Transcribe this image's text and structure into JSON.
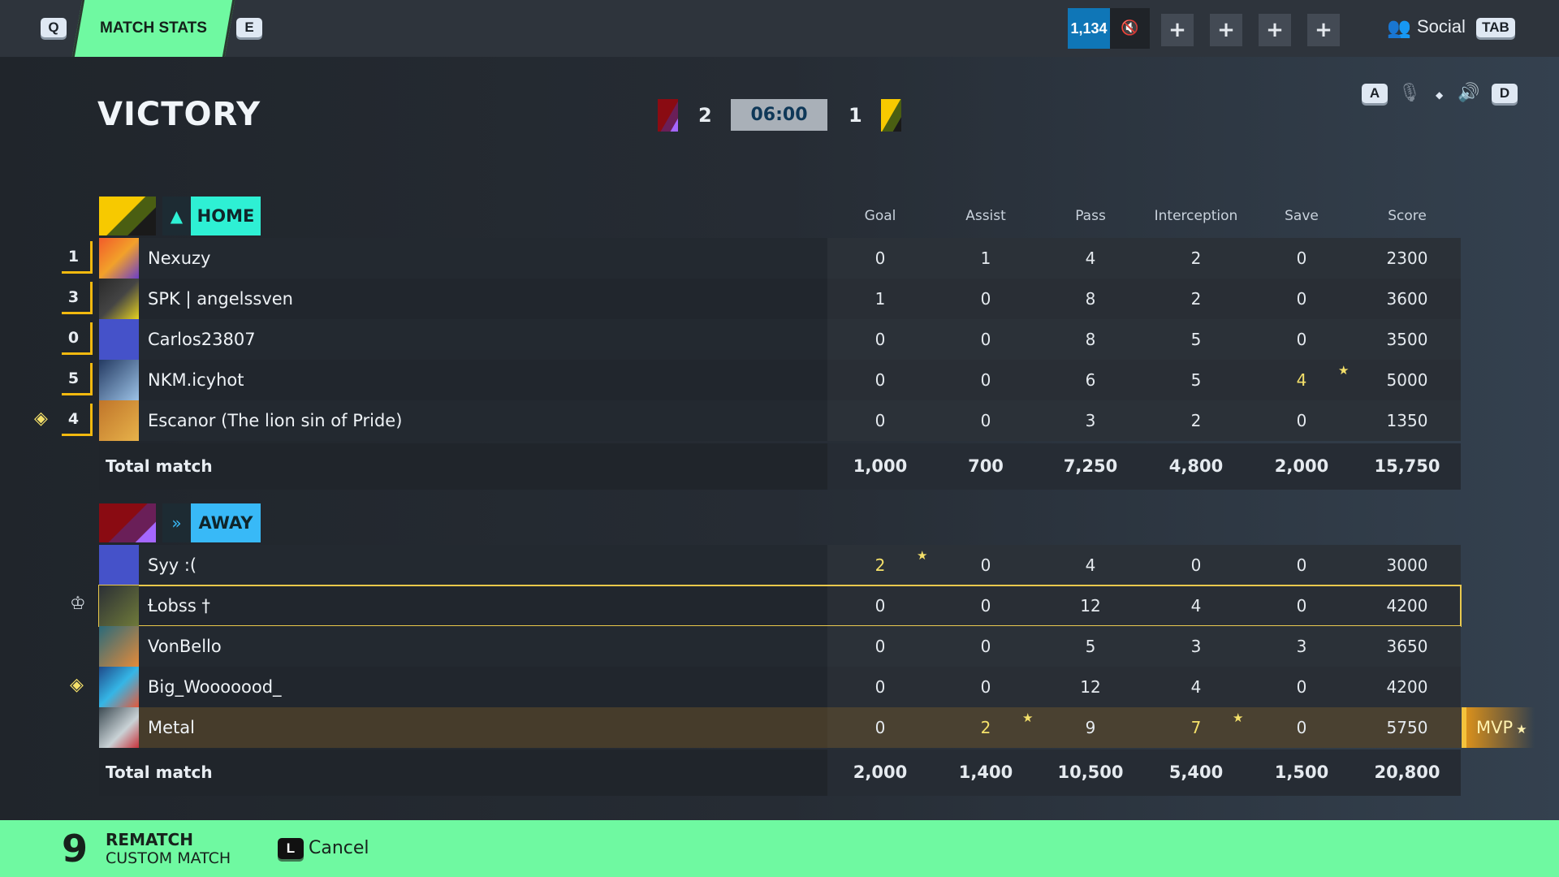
{
  "topbar": {
    "prev_key": "Q",
    "active_tab": "MATCH STATS",
    "next_key": "E",
    "currency": "1,134",
    "cosmetic_icon": "muted-speaker-boot-icon",
    "party_slots": [
      "+",
      "+",
      "+",
      "+"
    ],
    "social_label": "Social",
    "social_key": "TAB"
  },
  "header": {
    "result": "VICTORY",
    "away_score": "2",
    "timer": "06:00",
    "home_score": "1",
    "audio_left_key": "A",
    "audio_right_key": "D"
  },
  "columns": [
    "Goal",
    "Assist",
    "Pass",
    "Interception",
    "Save",
    "Score"
  ],
  "teams": [
    {
      "label": "HOME",
      "accent": "#2ef0d4",
      "players": [
        {
          "rank": "1",
          "name": "Nexuzy",
          "stats": [
            "0",
            "1",
            "4",
            "2",
            "0",
            "2300"
          ],
          "highlight": [],
          "side": ""
        },
        {
          "rank": "3",
          "name": "SPK | angelssven",
          "stats": [
            "1",
            "0",
            "8",
            "2",
            "0",
            "3600"
          ],
          "highlight": [],
          "side": ""
        },
        {
          "rank": "0",
          "name": "Carlos23807",
          "stats": [
            "0",
            "0",
            "8",
            "5",
            "0",
            "3500"
          ],
          "highlight": [],
          "side": ""
        },
        {
          "rank": "5",
          "name": "NKM.icyhot",
          "stats": [
            "0",
            "0",
            "6",
            "5",
            "4",
            "5000"
          ],
          "highlight": [
            4
          ],
          "side": ""
        },
        {
          "rank": "4",
          "name": "Escanor (The lion sin of Pride)",
          "stats": [
            "0",
            "0",
            "3",
            "2",
            "0",
            "1350"
          ],
          "highlight": [],
          "side": "captain-armband-icon"
        }
      ],
      "totals_label": "Total match",
      "totals": [
        "1,000",
        "700",
        "7,250",
        "4,800",
        "2,000",
        "15,750"
      ]
    },
    {
      "label": "AWAY",
      "accent": "#38b9f7",
      "players": [
        {
          "rank": "",
          "name": "Syy :(",
          "stats": [
            "2",
            "0",
            "4",
            "0",
            "0",
            "3000"
          ],
          "highlight": [
            0
          ],
          "side": ""
        },
        {
          "rank": "",
          "name": "Ƚobss †",
          "stats": [
            "0",
            "0",
            "12",
            "4",
            "0",
            "4200"
          ],
          "highlight": [],
          "side": "party-leader-icon",
          "current_user": true
        },
        {
          "rank": "",
          "name": "VonBello",
          "stats": [
            "0",
            "0",
            "5",
            "3",
            "3",
            "3650"
          ],
          "highlight": [],
          "side": ""
        },
        {
          "rank": "",
          "name": "Big_Wooooood_",
          "stats": [
            "0",
            "0",
            "12",
            "4",
            "0",
            "4200"
          ],
          "highlight": [],
          "side": "captain-armband-icon"
        },
        {
          "rank": "",
          "name": "Metal",
          "stats": [
            "0",
            "2",
            "9",
            "7",
            "0",
            "5750"
          ],
          "highlight": [
            1,
            3
          ],
          "side": "",
          "mvp": true
        }
      ],
      "totals_label": "Total match",
      "totals": [
        "2,000",
        "1,400",
        "10,500",
        "5,400",
        "1,500",
        "20,800"
      ]
    }
  ],
  "mvp_label": "MVP",
  "footer": {
    "countdown": "9",
    "rematch": "REMATCH",
    "mode": "CUSTOM MATCH",
    "cancel_key": "L",
    "cancel_label": "Cancel"
  },
  "colors": {
    "highlight": "#f4e06a",
    "rank_border": "#f2b90f",
    "bottom_bar": "#6ff9a1"
  }
}
